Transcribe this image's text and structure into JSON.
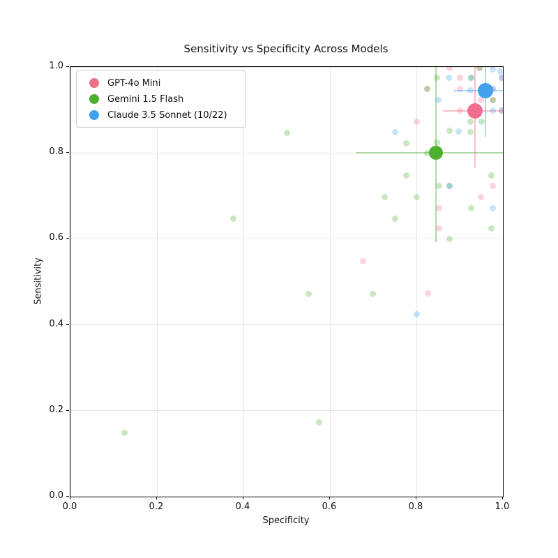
{
  "title": "Sensitivity vs Specificity Across Models",
  "xlabel": "Specificity",
  "ylabel": "Sensitivity",
  "chart_data": {
    "type": "scatter",
    "xlim": [
      0.0,
      1.0
    ],
    "ylim": [
      0.0,
      1.0
    ],
    "xticks": [
      0.0,
      0.2,
      0.4,
      0.6,
      0.8,
      1.0
    ],
    "yticks": [
      0.0,
      0.2,
      0.4,
      0.6,
      0.8,
      1.0
    ],
    "grid": true,
    "legend_position": "upper left",
    "point_alpha": 0.3,
    "errorbar_alpha": 0.45,
    "series": [
      {
        "name": "GPT-4o Mini",
        "color": "#F0708C",
        "mean": {
          "x": 0.935,
          "y": 0.898
        },
        "x_err": [
          0.862,
          1.0
        ],
        "y_err": [
          0.767,
          1.0
        ],
        "mean_size": 22,
        "point_size": 9,
        "points": [
          [
            0.876,
            0.998
          ],
          [
            0.901,
            0.975
          ],
          [
            0.901,
            0.949
          ],
          [
            0.949,
            0.923
          ],
          [
            0.901,
            0.898
          ],
          [
            0.801,
            0.873
          ],
          [
            0.976,
            0.724
          ],
          [
            0.949,
            0.697
          ],
          [
            0.852,
            0.672
          ],
          [
            0.852,
            0.624
          ],
          [
            0.676,
            0.548
          ],
          [
            0.826,
            0.473
          ],
          [
            0.825,
            0.949
          ],
          [
            0.946,
            0.998
          ],
          [
            0.977,
            0.923
          ],
          [
            0.997,
            0.975
          ],
          [
            0.997,
            0.898
          ],
          [
            0.977,
            0.949
          ]
        ]
      },
      {
        "name": "Gemini 1.5 Flash",
        "color": "#4CAF2F",
        "mean": {
          "x": 0.845,
          "y": 0.8
        },
        "x_err": [
          0.66,
          1.0
        ],
        "y_err": [
          0.592,
          1.0
        ],
        "mean_size": 20,
        "point_size": 9,
        "points": [
          [
            0.847,
            0.975
          ],
          [
            0.926,
            0.975
          ],
          [
            0.925,
            0.873
          ],
          [
            0.95,
            0.873
          ],
          [
            0.876,
            0.851
          ],
          [
            0.925,
            0.848
          ],
          [
            0.5,
            0.847
          ],
          [
            0.848,
            0.824
          ],
          [
            0.777,
            0.822
          ],
          [
            0.825,
            0.8
          ],
          [
            0.973,
            0.748
          ],
          [
            0.776,
            0.748
          ],
          [
            0.852,
            0.724
          ],
          [
            0.876,
            0.724
          ],
          [
            0.726,
            0.697
          ],
          [
            0.8,
            0.697
          ],
          [
            0.926,
            0.672
          ],
          [
            0.973,
            0.625
          ],
          [
            0.751,
            0.647
          ],
          [
            0.876,
            0.6
          ],
          [
            0.376,
            0.647
          ],
          [
            0.55,
            0.472
          ],
          [
            0.699,
            0.472
          ],
          [
            0.575,
            0.173
          ],
          [
            0.125,
            0.148
          ],
          [
            0.825,
            0.949
          ],
          [
            0.946,
            0.998
          ],
          [
            0.977,
            0.923
          ]
        ]
      },
      {
        "name": "Claude 3.5 Sonnet (10/22)",
        "color": "#41A1EC",
        "mean": {
          "x": 0.96,
          "y": 0.945
        },
        "x_err": [
          0.887,
          1.0
        ],
        "y_err": [
          0.838,
          1.0
        ],
        "mean_size": 22,
        "point_size": 9,
        "points": [
          [
            0.977,
            0.995
          ],
          [
            0.995,
            0.99
          ],
          [
            0.875,
            0.975
          ],
          [
            0.926,
            0.975
          ],
          [
            0.925,
            0.945
          ],
          [
            0.977,
            0.949
          ],
          [
            0.851,
            0.923
          ],
          [
            0.75,
            0.848
          ],
          [
            0.898,
            0.85
          ],
          [
            0.977,
            0.898
          ],
          [
            0.876,
            0.724
          ],
          [
            0.976,
            0.672
          ],
          [
            0.801,
            0.424
          ],
          [
            0.997,
            0.975
          ],
          [
            0.997,
            0.898
          ]
        ]
      }
    ]
  }
}
